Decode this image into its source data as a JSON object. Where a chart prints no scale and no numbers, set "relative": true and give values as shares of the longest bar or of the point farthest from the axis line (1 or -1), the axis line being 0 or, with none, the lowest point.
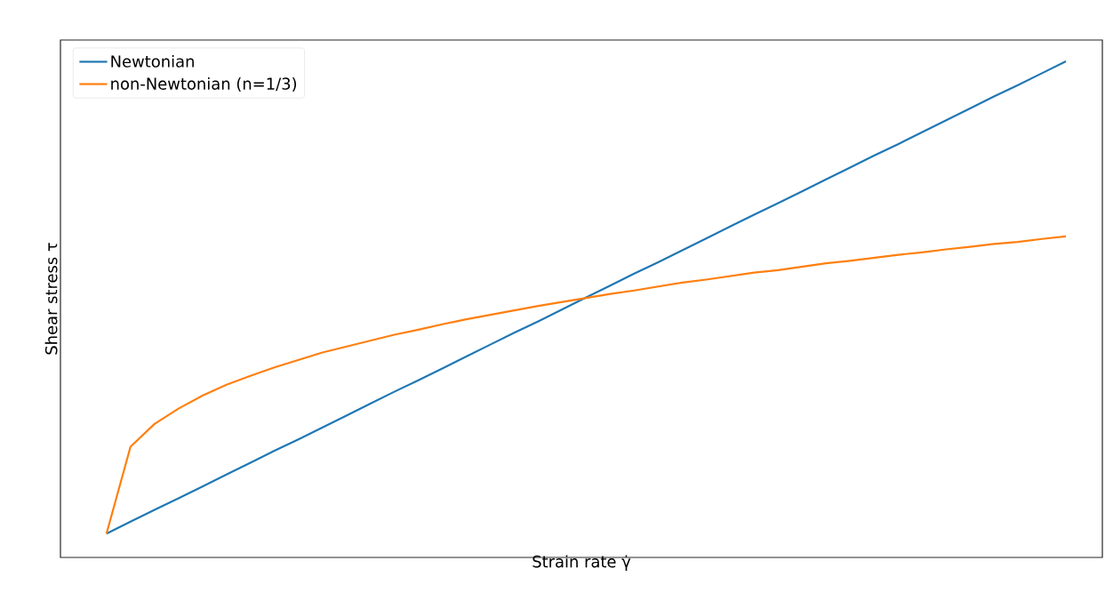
{
  "chart_data": {
    "type": "line",
    "relative": true,
    "xlabel": "Strain rate γ̇",
    "ylabel": "Shear stress τ",
    "legend": "top left",
    "marker": "none",
    "line_style": "solid",
    "categories": [
      null,
      null,
      null,
      null,
      null,
      null,
      null,
      null,
      null,
      null,
      null,
      null,
      null,
      null,
      null,
      null,
      null,
      null,
      null,
      null,
      null,
      null,
      null,
      null,
      null,
      null,
      null,
      null,
      null,
      null,
      null,
      null,
      null,
      null,
      null,
      null,
      null,
      null,
      null,
      null,
      null
    ],
    "series": [
      {
        "name": "Newtonian",
        "color": "#1f77b4",
        "values": [
          0.048,
          0.072,
          0.096,
          0.119,
          0.143,
          0.167,
          0.191,
          0.215,
          0.238,
          0.262,
          0.286,
          0.31,
          0.334,
          0.357,
          0.381,
          0.405,
          0.429,
          0.453,
          0.476,
          0.5,
          0.524,
          0.548,
          0.572,
          0.595,
          0.619,
          0.643,
          0.667,
          0.691,
          0.714,
          0.738,
          0.762,
          0.786,
          0.81,
          0.833,
          0.857,
          0.881,
          0.905,
          0.929,
          0.952,
          0.976,
          1
        ]
      },
      {
        "name": "non-Newtonian (n=1/3)",
        "color": "#ff7f0e",
        "values": [
          0.048,
          0.223,
          0.269,
          0.3,
          0.326,
          0.348,
          0.366,
          0.383,
          0.398,
          0.413,
          0.425,
          0.437,
          0.449,
          0.459,
          0.47,
          0.48,
          0.489,
          0.498,
          0.507,
          0.515,
          0.523,
          0.531,
          0.538,
          0.546,
          0.554,
          0.56,
          0.567,
          0.574,
          0.579,
          0.586,
          0.593,
          0.598,
          0.604,
          0.61,
          0.615,
          0.621,
          0.626,
          0.632,
          0.636,
          0.642,
          0.647
        ]
      }
    ]
  }
}
